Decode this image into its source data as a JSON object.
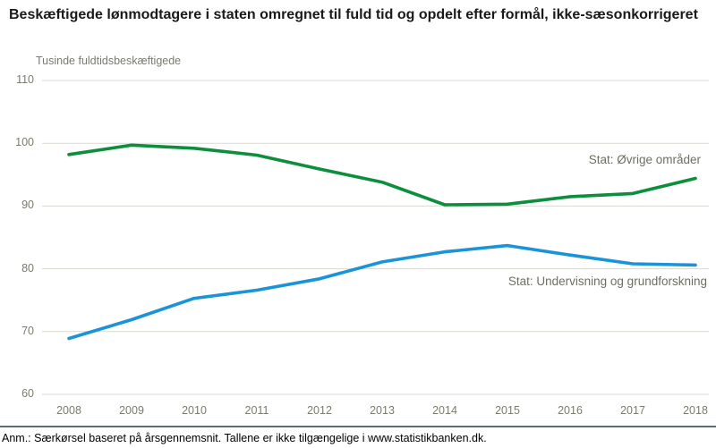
{
  "title": "Beskæftigede lønmodtagere i staten omregnet til fuld tid og opdelt efter formål, ikke-sæsonkorrigeret",
  "unit_label": "Tusinde fuldtidsbeskæftigede",
  "footnote": "Anm.: Særkørsel baseret på årsgennemsnit. Tallene er ikke tilgængelige i www.statistikbanken.dk.",
  "colors": {
    "series_green": "#0d8e3d",
    "series_blue": "#1b93d8",
    "gridline": "#d9d9d2",
    "tick_text": "#7b7b6d",
    "series_label_text": "#6e6e64",
    "separator": "#546e7a",
    "title_text": "#1a1a1a"
  },
  "chart_data": {
    "type": "line",
    "title": "Beskæftigede lønmodtagere i staten omregnet til fuld tid og opdelt efter formål, ikke-sæsonkorrigeret",
    "ylabel": "Tusinde fuldtidsbeskæftigede",
    "xlabel": "",
    "x": [
      2008,
      2009,
      2010,
      2011,
      2012,
      2013,
      2014,
      2015,
      2016,
      2017,
      2018
    ],
    "series": [
      {
        "name": "Stat: Øvrige områder",
        "color": "#0d8e3d",
        "values": [
          98.2,
          99.7,
          99.2,
          98.1,
          95.9,
          93.8,
          90.2,
          90.3,
          91.5,
          92.0,
          94.4
        ]
      },
      {
        "name": "Stat: Undervisning og grundforskning",
        "color": "#1b93d8",
        "values": [
          68.9,
          71.9,
          75.3,
          76.6,
          78.4,
          81.1,
          82.7,
          83.7,
          82.2,
          80.8,
          80.6
        ]
      }
    ],
    "ylim": [
      60,
      110
    ],
    "y_ticks": [
      110,
      100,
      90,
      80,
      70,
      60
    ],
    "grid": "horizontal",
    "legend_position": "inline-labels-right"
  }
}
